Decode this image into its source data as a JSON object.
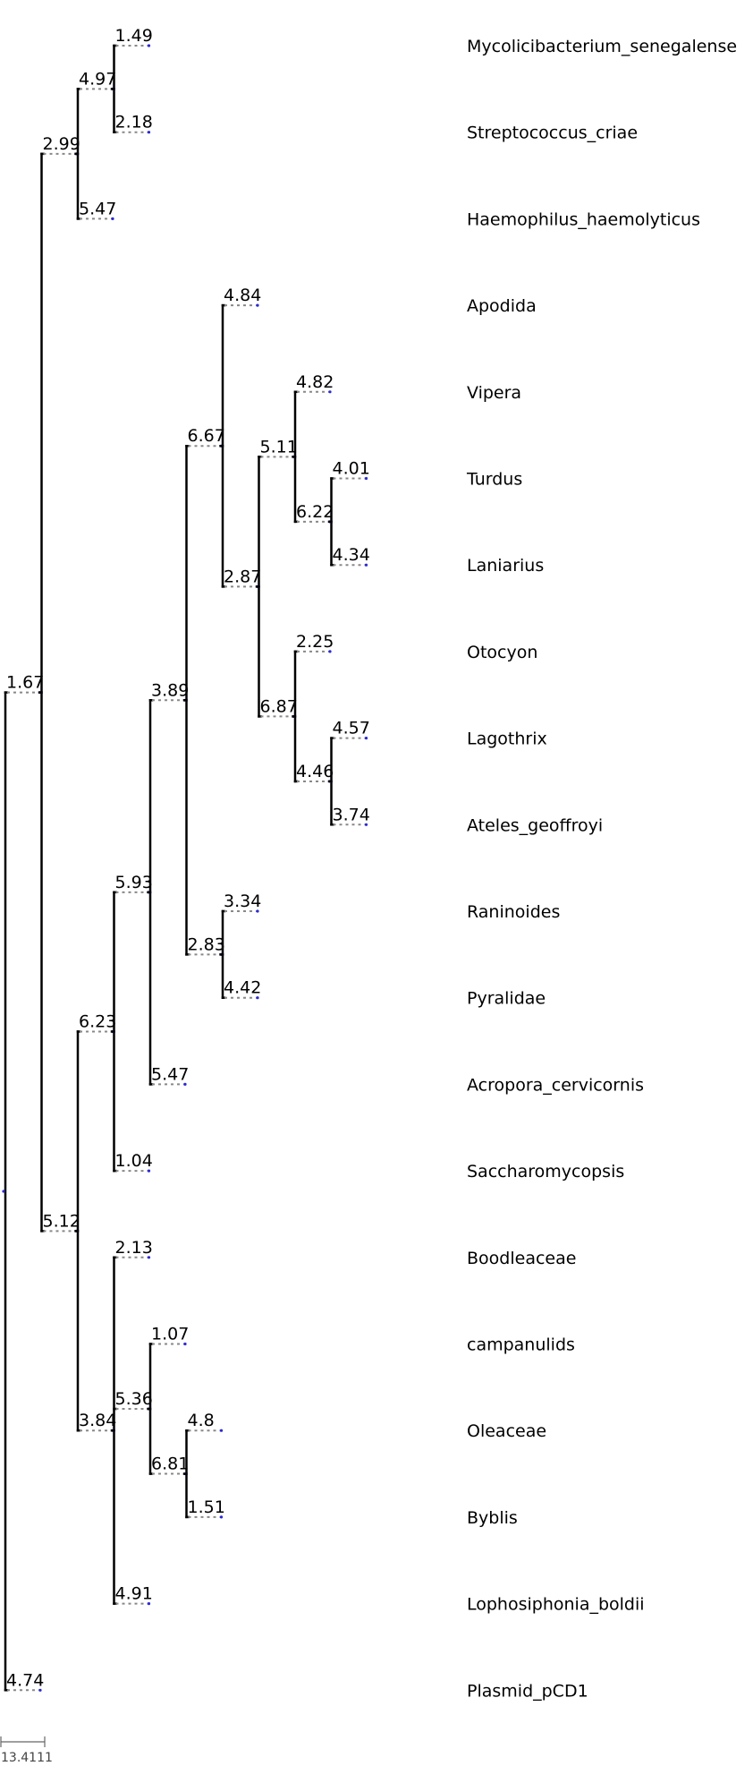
{
  "tree": {
    "type": "phylogram",
    "nodes": [
      {
        "id": "root",
        "children": [
          "n_a",
          "plasmid"
        ]
      },
      {
        "id": "n_a",
        "bl": "1.67",
        "children": [
          "n_b",
          "n_c"
        ]
      },
      {
        "id": "n_b",
        "bl": "2.99",
        "children": [
          "n_d",
          "haemophilus"
        ]
      },
      {
        "id": "n_d",
        "bl": "4.97",
        "children": [
          "mycoli",
          "strepto"
        ]
      },
      {
        "id": "mycoli",
        "bl": "1.49",
        "label": "Mycolicibacterium_senegalense"
      },
      {
        "id": "strepto",
        "bl": "2.18",
        "label": "Streptococcus_criae"
      },
      {
        "id": "haemophilus",
        "bl": "5.47",
        "label": "Haemophilus_haemolyticus"
      },
      {
        "id": "n_c",
        "bl": "5.12",
        "children": [
          "n_e",
          "n_f"
        ]
      },
      {
        "id": "n_e",
        "bl": "6.23",
        "children": [
          "n_g",
          "saccharo"
        ]
      },
      {
        "id": "n_g",
        "bl": "5.93",
        "children": [
          "n_h",
          "acropora"
        ]
      },
      {
        "id": "n_h",
        "bl": "3.89",
        "children": [
          "n_i",
          "n_j"
        ]
      },
      {
        "id": "n_i",
        "bl": "6.67",
        "children": [
          "apodida",
          "n_k"
        ]
      },
      {
        "id": "apodida",
        "bl": "4.84",
        "label": "Apodida"
      },
      {
        "id": "n_k",
        "bl": "2.87",
        "children": [
          "n_l",
          "n_m"
        ]
      },
      {
        "id": "n_l",
        "bl": "5.11",
        "children": [
          "vipera",
          "n_n"
        ]
      },
      {
        "id": "vipera",
        "bl": "4.82",
        "label": "Vipera"
      },
      {
        "id": "n_n",
        "bl": "6.22",
        "children": [
          "turdus",
          "laniarius"
        ]
      },
      {
        "id": "turdus",
        "bl": "4.01",
        "label": "Turdus"
      },
      {
        "id": "laniarius",
        "bl": "4.34",
        "label": "Laniarius"
      },
      {
        "id": "n_m",
        "bl": "6.87",
        "children": [
          "otocyon",
          "n_o"
        ]
      },
      {
        "id": "otocyon",
        "bl": "2.25",
        "label": "Otocyon"
      },
      {
        "id": "n_o",
        "bl": "4.46",
        "children": [
          "lagothrix",
          "ateles"
        ]
      },
      {
        "id": "lagothrix",
        "bl": "4.57",
        "label": "Lagothrix"
      },
      {
        "id": "ateles",
        "bl": "3.74",
        "label": "Ateles_geoffroyi"
      },
      {
        "id": "n_j",
        "bl": "2.83",
        "children": [
          "raninoides",
          "pyralidae"
        ]
      },
      {
        "id": "raninoides",
        "bl": "3.34",
        "label": "Raninoides"
      },
      {
        "id": "pyralidae",
        "bl": "4.42",
        "label": "Pyralidae"
      },
      {
        "id": "acropora",
        "bl": "5.47",
        "label": "Acropora_cervicornis"
      },
      {
        "id": "saccharo",
        "bl": "1.04",
        "label": "Saccharomycopsis"
      },
      {
        "id": "n_f",
        "bl": "3.84",
        "children": [
          "boodleaceae",
          "n_p",
          "lophosiphonia"
        ]
      },
      {
        "id": "boodleaceae",
        "bl": "2.13",
        "label": "Boodleaceae"
      },
      {
        "id": "n_p",
        "bl": "5.36",
        "children": [
          "campanulids",
          "n_q"
        ]
      },
      {
        "id": "campanulids",
        "bl": "1.07",
        "label": "campanulids"
      },
      {
        "id": "n_q",
        "bl": "6.81",
        "children": [
          "oleaceae",
          "byblis"
        ]
      },
      {
        "id": "oleaceae",
        "bl": "4.8",
        "label": "Oleaceae"
      },
      {
        "id": "byblis",
        "bl": "1.51",
        "label": "Byblis"
      },
      {
        "id": "lophosiphonia",
        "bl": "4.91",
        "label": "Lophosiphonia_boldii"
      },
      {
        "id": "plasmid",
        "bl": "4.74",
        "label": "Plasmid_pCD1"
      }
    ]
  },
  "scale_bar": {
    "label": "13.4111"
  }
}
